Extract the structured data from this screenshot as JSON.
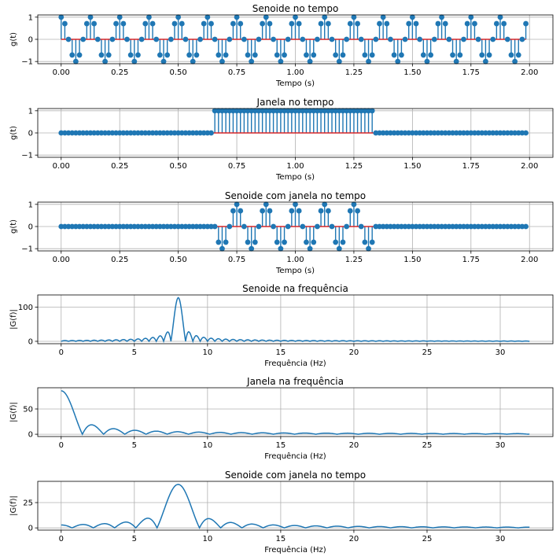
{
  "colors": {
    "stem": "#1f77b4",
    "baseline": "#d62728",
    "line": "#1f77b4",
    "grid": "#b0b0b0"
  },
  "chart_data": [
    {
      "type": "stem",
      "title": "Senoide no tempo",
      "xlabel": "Tempo (s)",
      "ylabel": "g(t)",
      "xlim": [
        -0.1,
        2.1
      ],
      "ylim": [
        -1.1,
        1.1
      ],
      "xticks": [
        "0.00",
        "0.25",
        "0.50",
        "0.75",
        "1.00",
        "1.25",
        "1.50",
        "1.75",
        "2.00"
      ],
      "yticks": [
        "−1",
        "0",
        "1"
      ],
      "grid": true,
      "signal": {
        "kind": "cosine",
        "frequency_hz": 8,
        "sample_interval_s": 0.015625,
        "samples": 128,
        "start_s": 0
      }
    },
    {
      "type": "stem",
      "title": "Janela no tempo",
      "xlabel": "Tempo (s)",
      "ylabel": "g(t)",
      "xlim": [
        -0.1,
        2.1
      ],
      "ylim": [
        -1.1,
        1.1
      ],
      "xticks": [
        "0.00",
        "0.25",
        "0.50",
        "0.75",
        "1.00",
        "1.25",
        "1.50",
        "1.75",
        "2.00"
      ],
      "yticks": [
        "−1",
        "0",
        "1"
      ],
      "grid": true,
      "signal": {
        "kind": "rect",
        "sample_interval_s": 0.015625,
        "samples": 128,
        "start_s": 0,
        "on_from_s": 0.65,
        "on_to_s": 1.33
      }
    },
    {
      "type": "stem",
      "title": "Senoide com janela no tempo",
      "xlabel": "Tempo (s)",
      "ylabel": "g(t)",
      "xlim": [
        -0.1,
        2.1
      ],
      "ylim": [
        -1.1,
        1.1
      ],
      "xticks": [
        "0.00",
        "0.25",
        "0.50",
        "0.75",
        "1.00",
        "1.25",
        "1.50",
        "1.75",
        "2.00"
      ],
      "yticks": [
        "−1",
        "0",
        "1"
      ],
      "grid": true,
      "signal": {
        "kind": "windowed-cosine",
        "frequency_hz": 8,
        "sample_interval_s": 0.015625,
        "samples": 128,
        "start_s": 0,
        "on_from_s": 0.65,
        "on_to_s": 1.33
      }
    },
    {
      "type": "line",
      "title": "Senoide na frequência",
      "xlabel": "Frequência (Hz)",
      "ylabel": "|G(f)|",
      "xlim": [
        -1.6,
        33.6
      ],
      "ylim": [
        -7,
        136
      ],
      "xticks": [
        "0",
        "5",
        "10",
        "15",
        "20",
        "25",
        "30"
      ],
      "yticks": [
        "0",
        "100"
      ],
      "grid": true,
      "spectrum": {
        "kind": "sinc-peak",
        "f0_hz": 8,
        "peak": 128,
        "main_lobe_halfwidth_hz": 0.5,
        "f_max_hz": 32
      }
    },
    {
      "type": "line",
      "title": "Janela na frequência",
      "xlabel": "Frequência (Hz)",
      "ylabel": "|G(f)|",
      "xlim": [
        -1.6,
        33.6
      ],
      "ylim": [
        -4.5,
        92
      ],
      "xticks": [
        "0",
        "5",
        "10",
        "15",
        "20",
        "25",
        "30"
      ],
      "yticks": [
        "0",
        "50"
      ],
      "grid": true,
      "spectrum": {
        "kind": "sinc-peak",
        "f0_hz": 0,
        "peak": 86,
        "main_lobe_halfwidth_hz": 1.45,
        "f_max_hz": 32
      }
    },
    {
      "type": "line",
      "title": "Senoide com janela no tempo",
      "xlabel": "Frequência (Hz)",
      "ylabel": "|G(f)|",
      "xlim": [
        -1.6,
        33.6
      ],
      "ylim": [
        -2.2,
        46
      ],
      "xticks": [
        "0",
        "5",
        "10",
        "15",
        "20",
        "25",
        "30"
      ],
      "yticks": [
        "0",
        "25"
      ],
      "grid": true,
      "spectrum": {
        "kind": "sinc-peak",
        "f0_hz": 8,
        "peak": 43,
        "main_lobe_halfwidth_hz": 1.45,
        "f_max_hz": 32
      }
    }
  ]
}
